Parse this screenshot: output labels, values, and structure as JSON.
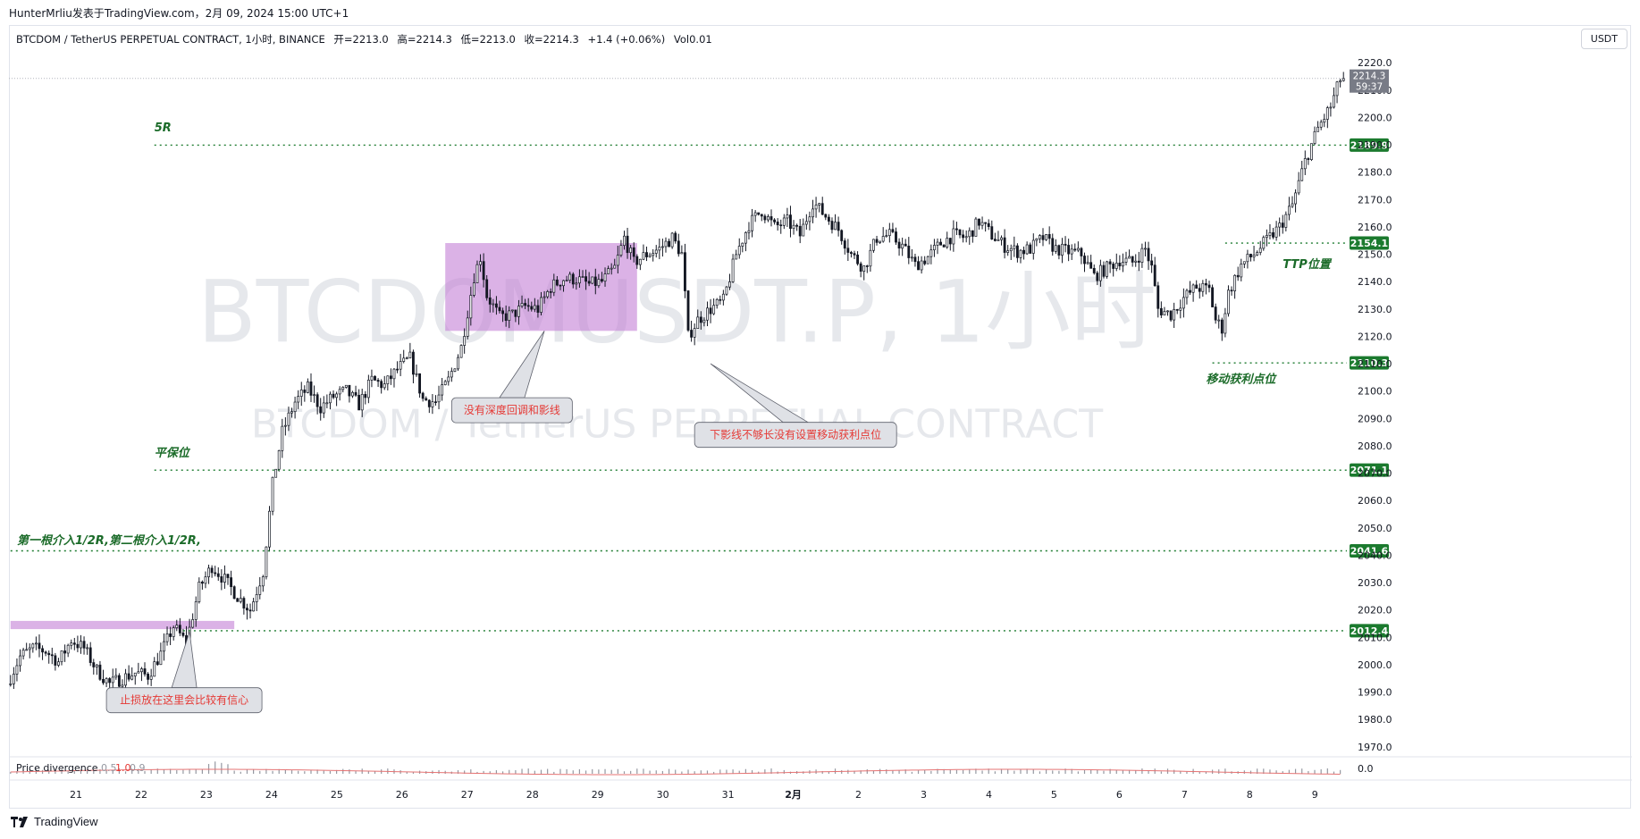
{
  "header": {
    "publish_info": "HunterMrliu发表于TradingView.com，2月 09, 2024 15:00 UTC+1",
    "symbol": "BTCDOM / TetherUS PERPETUAL CONTRACT, 1小时, BINANCE",
    "open": "开=2213.0",
    "high": "高=2214.3",
    "low": "低=2213.0",
    "close": "收=2214.3",
    "change": "+1.4 (+0.06%)",
    "volume": "Vol0.01",
    "unit": "USDT"
  },
  "watermark": {
    "line1": "BTCDOMUSDT.P, 1小时",
    "line2": "BTCDOM / TetherUS PERPETUAL CONTRACT"
  },
  "indicator": {
    "name": "Price divergence",
    "params": [
      "0.5",
      "1.0",
      "0.9"
    ],
    "value": "0.0"
  },
  "footer": {
    "brand": "TradingView"
  },
  "colors": {
    "up": "#131722",
    "down": "#131722",
    "level_line": "#1b7a2e",
    "annotation_text": "#1b6b29",
    "callout_text": "#e53935",
    "zone_purple": "#c37ed6",
    "price_tag": "#787b86"
  },
  "chart_data": {
    "type": "candlestick",
    "x_ticks": [
      "21",
      "22",
      "23",
      "24",
      "25",
      "26",
      "27",
      "28",
      "29",
      "30",
      "31",
      "2月",
      "2",
      "3",
      "4",
      "5",
      "6",
      "7",
      "8",
      "9"
    ],
    "y_ticks": [
      1970.0,
      1980.0,
      1990.0,
      2000.0,
      2010.0,
      2020.0,
      2030.0,
      2040.0,
      2050.0,
      2060.0,
      2070.0,
      2080.0,
      2090.0,
      2100.0,
      2110.0,
      2120.0,
      2130.0,
      2140.0,
      2150.0,
      2160.0,
      2170.0,
      2180.0,
      2190.0,
      2200.0,
      2210.0,
      2220.0
    ],
    "ylim": [
      1966,
      2224
    ],
    "last_price": "2214.3",
    "countdown": "59:37",
    "price_path": [
      [
        0,
        1993
      ],
      [
        4,
        2003
      ],
      [
        8,
        2006
      ],
      [
        12,
        2005
      ],
      [
        16,
        2001
      ],
      [
        20,
        2009
      ],
      [
        24,
        2006
      ],
      [
        28,
        1998
      ],
      [
        32,
        1993
      ],
      [
        36,
        1995
      ],
      [
        40,
        1997
      ],
      [
        44,
        1996
      ],
      [
        48,
        2004
      ],
      [
        52,
        2014
      ],
      [
        56,
        2008
      ],
      [
        60,
        2028
      ],
      [
        64,
        2036
      ],
      [
        68,
        2031
      ],
      [
        72,
        2025
      ],
      [
        76,
        2020
      ],
      [
        80,
        2034
      ],
      [
        83,
        2066
      ],
      [
        86,
        2085
      ],
      [
        90,
        2096
      ],
      [
        94,
        2101
      ],
      [
        98,
        2094
      ],
      [
        102,
        2098
      ],
      [
        106,
        2100
      ],
      [
        110,
        2095
      ],
      [
        114,
        2104
      ],
      [
        118,
        2102
      ],
      [
        122,
        2108
      ],
      [
        126,
        2112
      ],
      [
        130,
        2097
      ],
      [
        134,
        2096
      ],
      [
        138,
        2104
      ],
      [
        142,
        2116
      ],
      [
        146,
        2142
      ],
      [
        148,
        2149
      ],
      [
        150,
        2135
      ],
      [
        154,
        2127
      ],
      [
        158,
        2128
      ],
      [
        162,
        2131
      ],
      [
        166,
        2130
      ],
      [
        170,
        2138
      ],
      [
        174,
        2141
      ],
      [
        178,
        2141
      ],
      [
        182,
        2139
      ],
      [
        186,
        2140
      ],
      [
        190,
        2145
      ],
      [
        193,
        2156
      ],
      [
        196,
        2147
      ],
      [
        200,
        2150
      ],
      [
        204,
        2152
      ],
      [
        208,
        2156
      ],
      [
        211,
        2150
      ],
      [
        213,
        2120
      ],
      [
        216,
        2126
      ],
      [
        220,
        2130
      ],
      [
        224,
        2133
      ],
      [
        228,
        2150
      ],
      [
        232,
        2161
      ],
      [
        236,
        2166
      ],
      [
        240,
        2160
      ],
      [
        244,
        2162
      ],
      [
        248,
        2157
      ],
      [
        252,
        2169
      ],
      [
        256,
        2164
      ],
      [
        260,
        2159
      ],
      [
        264,
        2150
      ],
      [
        268,
        2145
      ],
      [
        272,
        2156
      ],
      [
        276,
        2157
      ],
      [
        280,
        2153
      ],
      [
        284,
        2146
      ],
      [
        288,
        2149
      ],
      [
        292,
        2154
      ],
      [
        296,
        2157
      ],
      [
        300,
        2156
      ],
      [
        304,
        2162
      ],
      [
        308,
        2157
      ],
      [
        312,
        2153
      ],
      [
        316,
        2151
      ],
      [
        320,
        2152
      ],
      [
        324,
        2156
      ],
      [
        328,
        2152
      ],
      [
        332,
        2151
      ],
      [
        336,
        2150
      ],
      [
        340,
        2142
      ],
      [
        344,
        2145
      ],
      [
        348,
        2148
      ],
      [
        352,
        2147
      ],
      [
        356,
        2152
      ],
      [
        358,
        2145
      ],
      [
        360,
        2130
      ],
      [
        364,
        2128
      ],
      [
        368,
        2134
      ],
      [
        372,
        2138
      ],
      [
        376,
        2137
      ],
      [
        378,
        2126
      ],
      [
        380,
        2123
      ],
      [
        382,
        2136
      ],
      [
        386,
        2146
      ],
      [
        390,
        2150
      ],
      [
        394,
        2155
      ],
      [
        398,
        2160
      ],
      [
        402,
        2168
      ],
      [
        406,
        2184
      ],
      [
        410,
        2196
      ],
      [
        414,
        2204
      ],
      [
        417,
        2214
      ]
    ],
    "bars_total": 418,
    "levels": [
      {
        "label": "2189.9",
        "price": 2189.9,
        "from": 45
      },
      {
        "label": "2154.1",
        "price": 2154.1,
        "from": 380
      },
      {
        "label": "2110.3",
        "price": 2110.3,
        "from": 376
      },
      {
        "label": "2071.1",
        "price": 2071.1,
        "from": 45
      },
      {
        "label": "2041.6",
        "price": 2041.6,
        "from": 0
      },
      {
        "label": "2012.4",
        "price": 2012.4,
        "from": 54
      }
    ],
    "zones": [
      {
        "from_bar": 136,
        "to_bar": 196,
        "top": 2154.1,
        "bottom": 2122
      },
      {
        "from_bar": 0,
        "to_bar": 70,
        "top": 2016,
        "bottom": 2013
      }
    ],
    "annotations": [
      {
        "text": "5R",
        "bar": 45,
        "price": 2195
      },
      {
        "text": "平保位",
        "bar": 45,
        "price": 2076
      },
      {
        "text": "第一根介入1/2R,第二根介入1/2R,",
        "bar": 2,
        "price": 2044
      },
      {
        "text": "TTP位置",
        "bar": 398,
        "price": 2145
      },
      {
        "text": "移动获利点位",
        "bar": 374,
        "price": 2103
      }
    ],
    "callouts": [
      {
        "text": "没有深度回调和影线",
        "bar": 138,
        "price": 2093,
        "point_bar": 167,
        "point_price": 2122
      },
      {
        "text": "下影线不够长没有设置移动获利点位",
        "bar": 214,
        "price": 2084,
        "point_bar": 219,
        "point_price": 2110
      },
      {
        "text": "止损放在这里会比较有信心",
        "bar": 30,
        "price": 1987,
        "point_bar": 56,
        "point_price": 2012
      }
    ]
  }
}
